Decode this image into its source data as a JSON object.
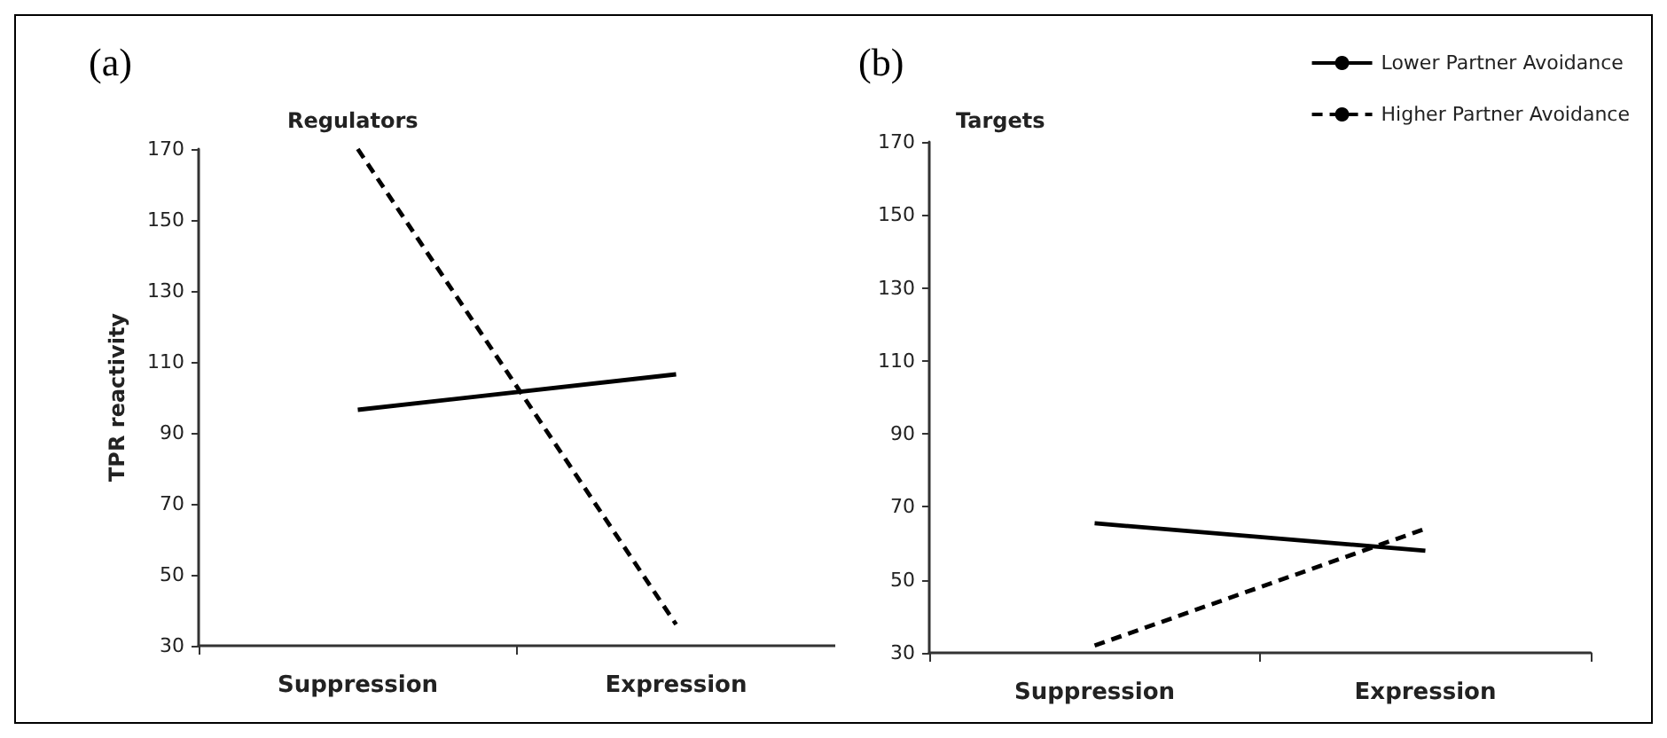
{
  "chart_data": [
    {
      "type": "line",
      "title": "(a)",
      "subtitle": "Regulators",
      "ylabel": "TPR reactivity",
      "categories": [
        "Suppression",
        "Expression"
      ],
      "series": [
        {
          "color": "#000000",
          "line_style": "solid",
          "values": [
            96.5,
            106.5
          ]
        },
        {
          "color": "#000000",
          "line_style": "dashed",
          "values": [
            170,
            36
          ]
        }
      ],
      "ylim": [
        30,
        170
      ],
      "yticks": [
        30,
        50,
        70,
        90,
        110,
        130,
        150,
        170
      ],
      "grid": false,
      "legend": false,
      "marker": "none"
    },
    {
      "type": "line",
      "title": "(b)",
      "subtitle": "Targets",
      "categories": [
        "Suppression",
        "Expression"
      ],
      "series": [
        {
          "name": "Lower Partner Avoidance",
          "color": "#000000",
          "line_style": "solid",
          "values": [
            65.5,
            58
          ]
        },
        {
          "name": "Higher Partner Avoidance",
          "color": "#000000",
          "line_style": "dashed",
          "values": [
            32,
            64
          ]
        }
      ],
      "ylim": [
        30,
        170
      ],
      "yticks": [
        30,
        50,
        70,
        90,
        110,
        130,
        150,
        170
      ],
      "grid": false,
      "legend": "top right",
      "marker": "none"
    }
  ]
}
